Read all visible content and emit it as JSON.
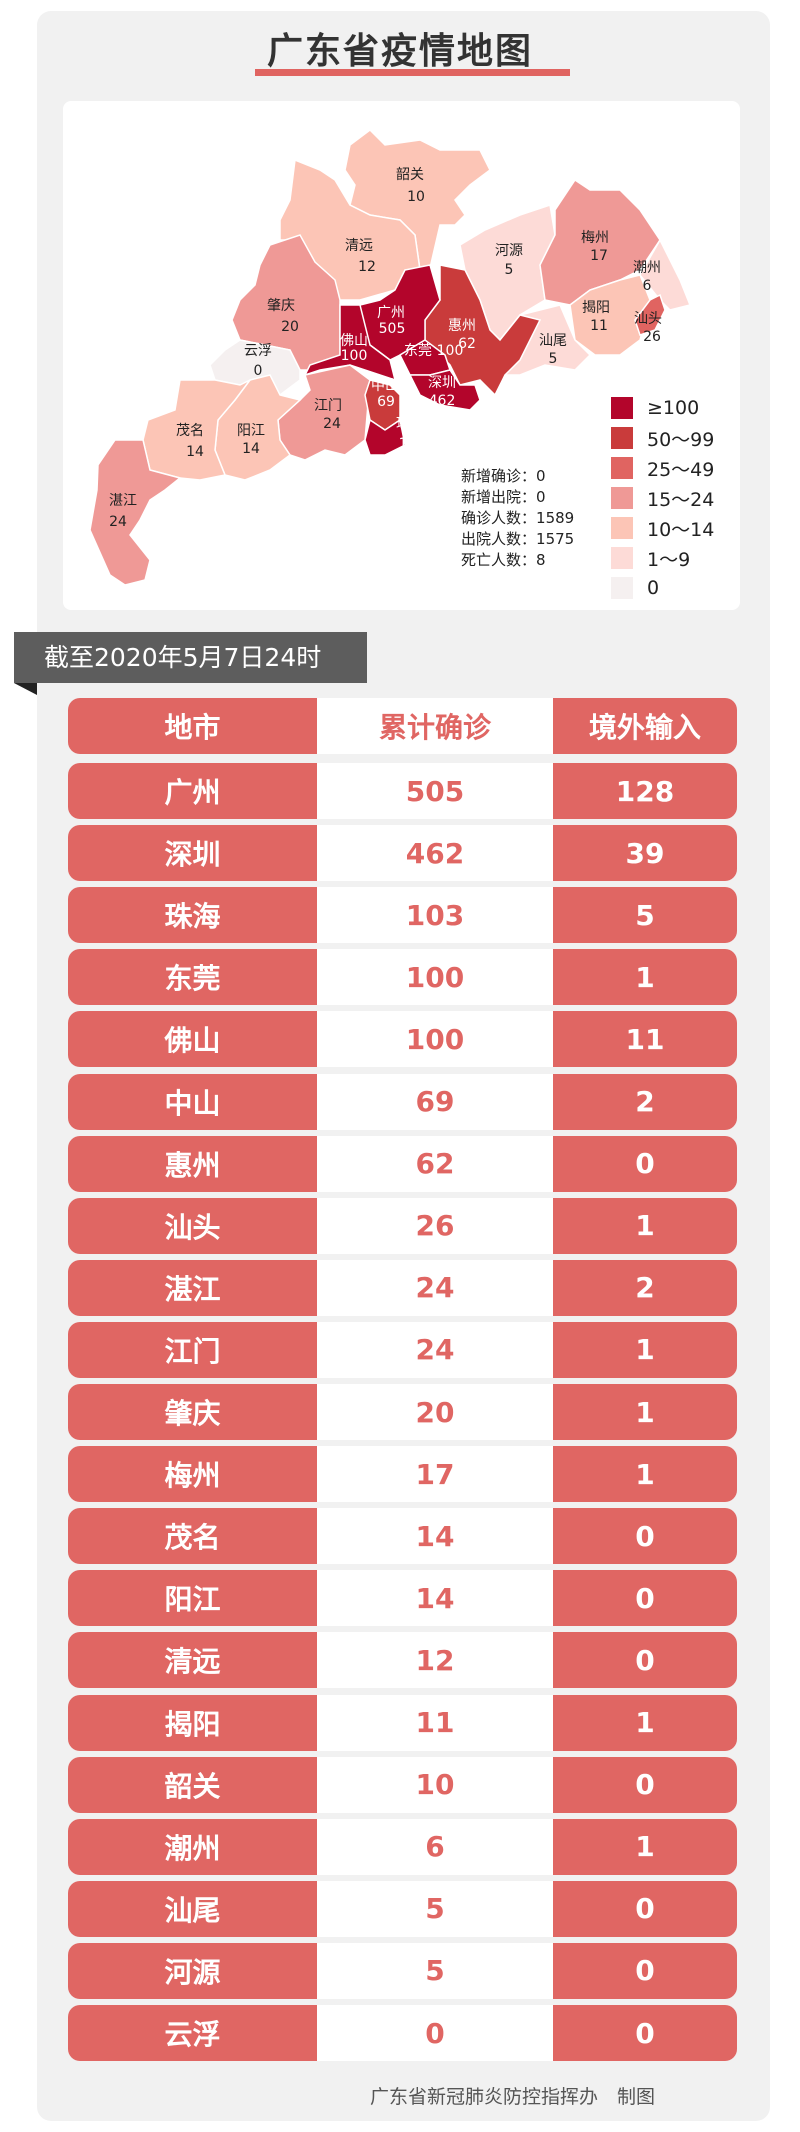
{
  "title": "广东省疫情地图",
  "colors": {
    "ge100": "#b3052b",
    "c50_99": "#c93b3b",
    "c25_49": "#e06461",
    "c15_24": "#ef9996",
    "c10_14": "#fcc5b6",
    "c1_9": "#fddbd7",
    "c0": "#f5f0f0",
    "table_red": "#e06663"
  },
  "map": {
    "regions": [
      {
        "name": "韶关",
        "value": "10"
      },
      {
        "name": "清远",
        "value": "12"
      },
      {
        "name": "河源",
        "value": "5"
      },
      {
        "name": "梅州",
        "value": "17"
      },
      {
        "name": "潮州",
        "value": "6"
      },
      {
        "name": "揭阳",
        "value": "11"
      },
      {
        "name": "汕头",
        "value": "26"
      },
      {
        "name": "肇庆",
        "value": "20"
      },
      {
        "name": "广州",
        "value": "505"
      },
      {
        "name": "惠州",
        "value": "62"
      },
      {
        "name": "佛山",
        "value": "100"
      },
      {
        "name": "东莞",
        "value": "100"
      },
      {
        "name": "汕尾",
        "value": "5"
      },
      {
        "name": "云浮",
        "value": "0"
      },
      {
        "name": "深圳",
        "value": "462"
      },
      {
        "name": "中山",
        "value": "69"
      },
      {
        "name": "江门",
        "value": "24"
      },
      {
        "name": "珠海",
        "value": "103"
      },
      {
        "name": "茂名",
        "value": "14"
      },
      {
        "name": "阳江",
        "value": "14"
      },
      {
        "name": "湛江",
        "value": "24"
      }
    ],
    "stats": [
      {
        "label": "新增确诊",
        "value": "0"
      },
      {
        "label": "新增出院",
        "value": "0"
      },
      {
        "label": "确诊人数",
        "value": "1589"
      },
      {
        "label": "出院人数",
        "value": "1575"
      },
      {
        "label": "死亡人数",
        "value": "8"
      }
    ],
    "legend": [
      "≥100",
      "50～99",
      "25～49",
      "15～24",
      "10～14",
      "1～9",
      "0"
    ]
  },
  "banner": "截至2020年5月7日24时",
  "table": {
    "headers": [
      "地市",
      "累计确诊",
      "境外输入"
    ],
    "rows": [
      [
        "广州",
        "505",
        "128"
      ],
      [
        "深圳",
        "462",
        "39"
      ],
      [
        "珠海",
        "103",
        "5"
      ],
      [
        "东莞",
        "100",
        "1"
      ],
      [
        "佛山",
        "100",
        "11"
      ],
      [
        "中山",
        "69",
        "2"
      ],
      [
        "惠州",
        "62",
        "0"
      ],
      [
        "汕头",
        "26",
        "1"
      ],
      [
        "湛江",
        "24",
        "2"
      ],
      [
        "江门",
        "24",
        "1"
      ],
      [
        "肇庆",
        "20",
        "1"
      ],
      [
        "梅州",
        "17",
        "1"
      ],
      [
        "茂名",
        "14",
        "0"
      ],
      [
        "阳江",
        "14",
        "0"
      ],
      [
        "清远",
        "12",
        "0"
      ],
      [
        "揭阳",
        "11",
        "1"
      ],
      [
        "韶关",
        "10",
        "0"
      ],
      [
        "潮州",
        "6",
        "1"
      ],
      [
        "汕尾",
        "5",
        "0"
      ],
      [
        "河源",
        "5",
        "0"
      ],
      [
        "云浮",
        "0",
        "0"
      ]
    ]
  },
  "footer": "广东省新冠肺炎防控指挥办　制图"
}
